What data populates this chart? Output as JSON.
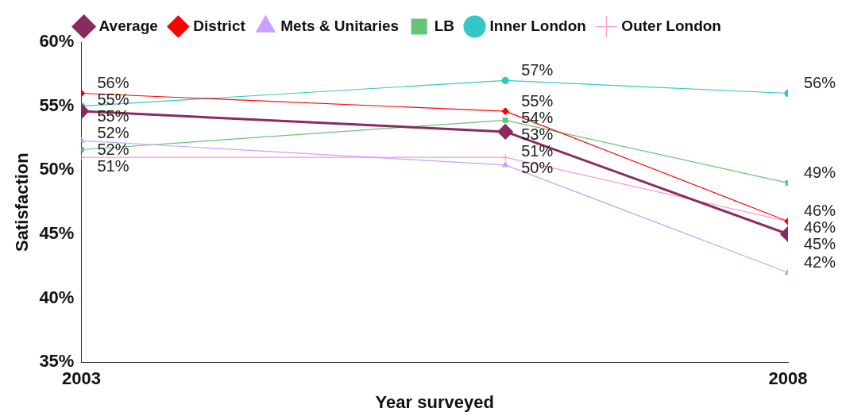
{
  "chart_data": {
    "type": "line",
    "xlabel": "Year surveyed",
    "ylabel": "Satisfaction",
    "x": [
      2003,
      2006,
      2008
    ],
    "xlim": [
      2003,
      2008
    ],
    "xticks": [
      2003,
      2008
    ],
    "ylim": [
      35,
      60
    ],
    "yticks": [
      {
        "value": 35,
        "label": "35%"
      },
      {
        "value": 40,
        "label": "40%"
      },
      {
        "value": 45,
        "label": "45%"
      },
      {
        "value": 50,
        "label": "50%"
      },
      {
        "value": 55,
        "label": "55%"
      },
      {
        "value": 60,
        "label": "60%"
      }
    ],
    "grid": false,
    "legend": "top",
    "line_style": "solid",
    "series": [
      {
        "name": "Average",
        "color": "#8b2a5e",
        "marker": "diamond",
        "values": [
          54.6,
          53.0,
          45.0
        ],
        "value_labels": [
          "55%",
          "53%",
          "45%"
        ]
      },
      {
        "name": "District",
        "color": "#ff0000",
        "marker": "diamond",
        "values": [
          56.0,
          54.6,
          46.0
        ],
        "value_labels": [
          "56%",
          "55%",
          "46%"
        ]
      },
      {
        "name": "Mets & Unitaries",
        "color": "#c9a0ff",
        "marker": "triangle",
        "values": [
          52.3,
          50.4,
          42.0
        ],
        "value_labels": [
          "52%",
          "50%",
          "42%"
        ]
      },
      {
        "name": "LB",
        "color": "#66c47a",
        "marker": "square",
        "values": [
          51.6,
          53.9,
          49.0
        ],
        "value_labels": [
          "52%",
          "54%",
          "49%"
        ]
      },
      {
        "name": "Inner London",
        "color": "#33c8c8",
        "marker": "circle",
        "values": [
          55.0,
          57.0,
          56.0
        ],
        "value_labels": [
          "55%",
          "57%",
          "56%"
        ]
      },
      {
        "name": "Outer London",
        "color": "#ff99cc",
        "marker": "cross",
        "values": [
          51.0,
          51.0,
          46.0
        ],
        "value_labels": [
          "51%",
          "51%",
          "46%"
        ]
      }
    ]
  }
}
